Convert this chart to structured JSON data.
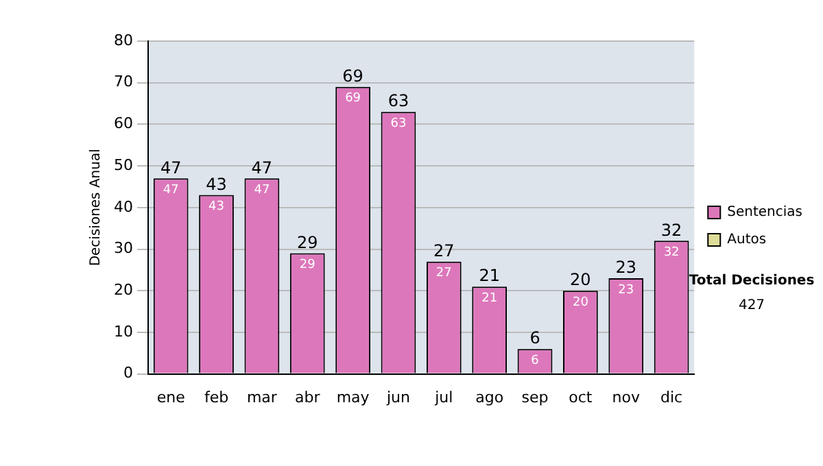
{
  "chart_data": {
    "type": "bar",
    "ylabel": "Decisiones Anual",
    "categories": [
      "ene",
      "feb",
      "mar",
      "abr",
      "may",
      "jun",
      "jul",
      "ago",
      "sep",
      "oct",
      "nov",
      "dic"
    ],
    "series": [
      {
        "name": "Sentencias",
        "color": "#dd77bb",
        "values": [
          47,
          43,
          47,
          29,
          69,
          63,
          27,
          21,
          6,
          20,
          23,
          32
        ]
      },
      {
        "name": "Autos",
        "color": "#dddd99",
        "values": [
          null,
          null,
          null,
          null,
          null,
          null,
          null,
          null,
          null,
          null,
          null,
          null
        ]
      }
    ],
    "stacked": true,
    "totals": [
      "47",
      "43",
      "47",
      "29",
      "69",
      "63",
      "27",
      "21",
      "6",
      "20",
      "23",
      "32"
    ],
    "data_labels": true,
    "ylim": [
      0,
      80
    ],
    "yticks": [
      0,
      10,
      20,
      30,
      40,
      50,
      60,
      70,
      80
    ],
    "grid": "y",
    "legend": "right",
    "annotations": [
      "Total Decisiones",
      "427"
    ]
  }
}
